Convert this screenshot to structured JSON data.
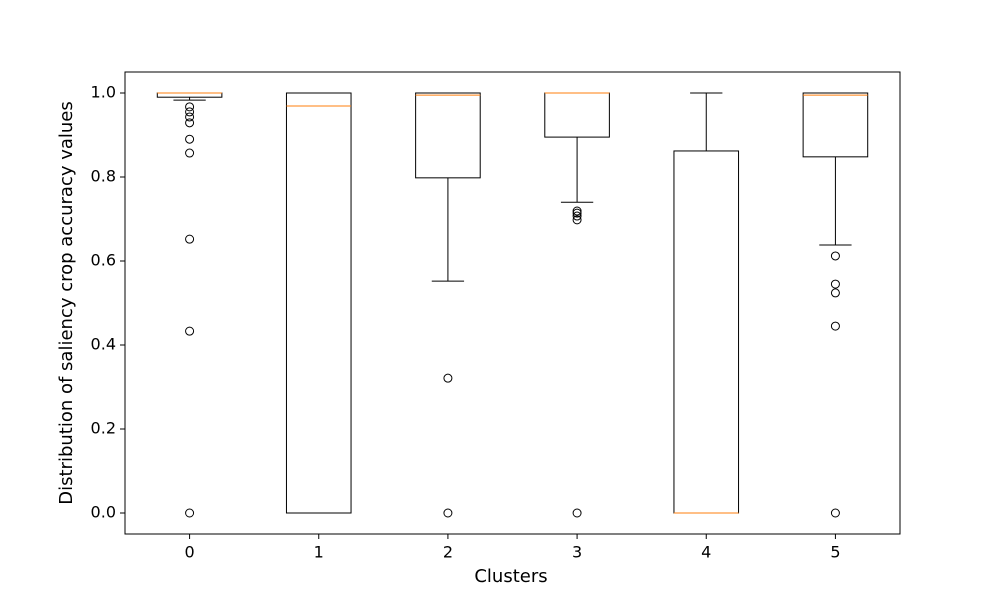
{
  "chart_data": {
    "type": "box",
    "xlabel": "Clusters",
    "ylabel": "Distribution of saliency crop accuracy values",
    "categories": [
      "0",
      "1",
      "2",
      "3",
      "4",
      "5"
    ],
    "boxes": [
      {
        "whislo": 0.983,
        "q1": 0.99,
        "med": 1.0,
        "q3": 1.0,
        "whishi": 1.0,
        "fliers": [
          0.967,
          0.955,
          0.943,
          0.929,
          0.89,
          0.857,
          0.652,
          0.433,
          0
        ]
      },
      {
        "whislo": 0,
        "q1": 0,
        "med": 0.969,
        "q3": 1.0,
        "whishi": 1.0,
        "fliers": []
      },
      {
        "whislo": 0.552,
        "q1": 0.798,
        "med": 0.995,
        "q3": 1.0,
        "whishi": 1.0,
        "fliers": [
          0.321,
          0
        ]
      },
      {
        "whislo": 0.74,
        "q1": 0.895,
        "med": 1.0,
        "q3": 1.0,
        "whishi": 1.0,
        "fliers": [
          0.719,
          0.714,
          0.707,
          0.698,
          0
        ]
      },
      {
        "whislo": 0,
        "q1": 0,
        "med": 0,
        "q3": 0.862,
        "whishi": 1.0,
        "fliers": []
      },
      {
        "whislo": 0.638,
        "q1": 0.848,
        "med": 0.995,
        "q3": 1.0,
        "whishi": 1.0,
        "fliers": [
          0.612,
          0.545,
          0.524,
          0.445,
          0
        ]
      }
    ],
    "box_color": "#000000",
    "median_color": "#ff7f0e",
    "ylim": [
      -0.05,
      1.05
    ],
    "yticks": [
      {
        "value": 0,
        "label": "0.0"
      },
      0.2,
      0.4,
      0.6,
      0.8,
      {
        "value": 1,
        "label": "1.0"
      }
    ]
  }
}
